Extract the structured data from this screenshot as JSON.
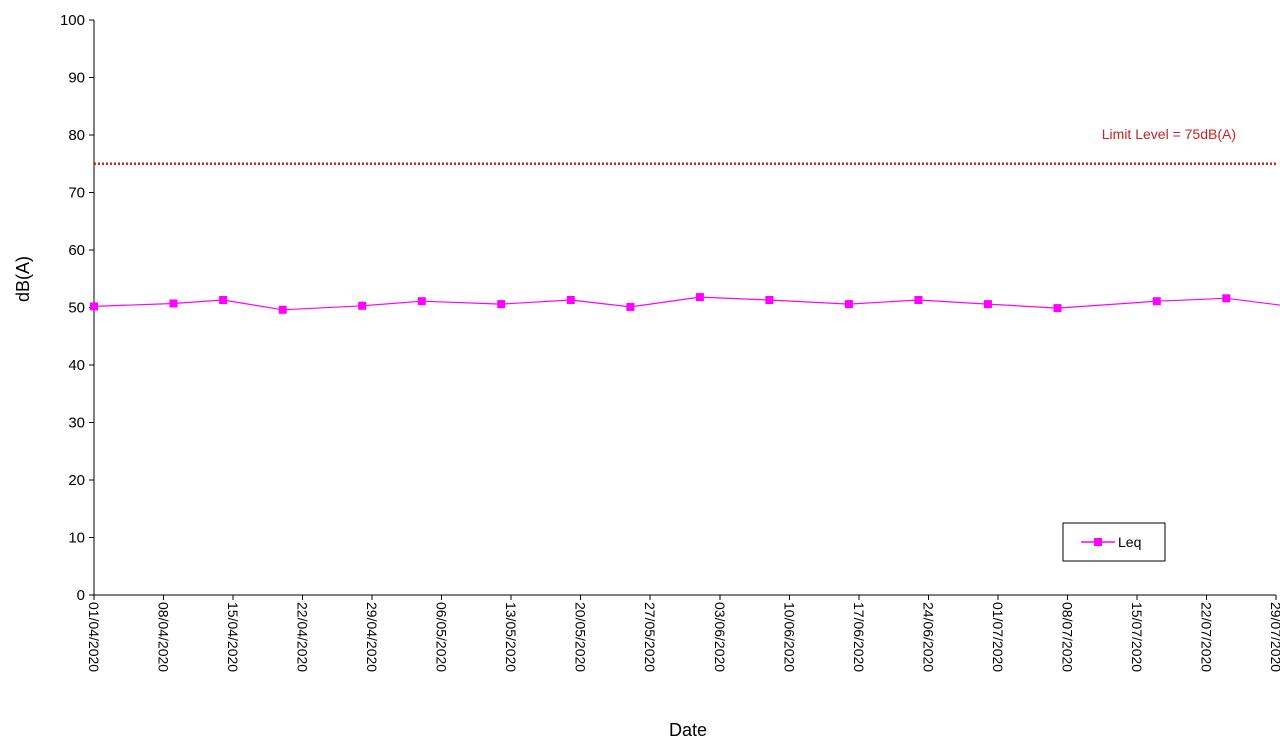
{
  "chart_data": {
    "type": "line",
    "xlabel": "Date",
    "ylabel": "dB(A)",
    "ylim": [
      0,
      100
    ],
    "yticks": [
      0,
      10,
      20,
      30,
      40,
      50,
      60,
      70,
      80,
      90,
      100
    ],
    "x_tick_labels": [
      "01/04/2020",
      "08/04/2020",
      "15/04/2020",
      "22/04/2020",
      "29/04/2020",
      "06/05/2020",
      "13/05/2020",
      "20/05/2020",
      "27/05/2020",
      "03/06/2020",
      "10/06/2020",
      "17/06/2020",
      "24/06/2020",
      "01/07/2020",
      "08/07/2020",
      "15/07/2020",
      "22/07/2020",
      "29/07/2020"
    ],
    "x_range": [
      "01/04/2020",
      "29/07/2020"
    ],
    "grid": false,
    "legend": {
      "position": "bottom-right",
      "entries": [
        "Leq"
      ]
    },
    "series": [
      {
        "name": "Leq",
        "color": "#ff00ff",
        "marker": "square",
        "x": [
          "01/04/2020",
          "09/04/2020",
          "14/04/2020",
          "20/04/2020",
          "28/04/2020",
          "04/05/2020",
          "12/05/2020",
          "19/05/2020",
          "25/05/2020",
          "01/06/2020",
          "08/06/2020",
          "16/06/2020",
          "23/06/2020",
          "30/06/2020",
          "07/07/2020",
          "17/07/2020",
          "24/07/2020",
          "30/07/2020"
        ],
        "values": [
          50.2,
          50.7,
          51.3,
          49.6,
          50.3,
          51.1,
          50.6,
          51.3,
          50.1,
          51.8,
          51.3,
          50.6,
          51.3,
          50.6,
          49.9,
          51.1,
          51.6,
          50.3
        ]
      }
    ],
    "reference_lines": [
      {
        "label": "Limit Level = 75dB(A)",
        "y": 75,
        "color": "#cc2222",
        "style": "dotted"
      }
    ]
  }
}
